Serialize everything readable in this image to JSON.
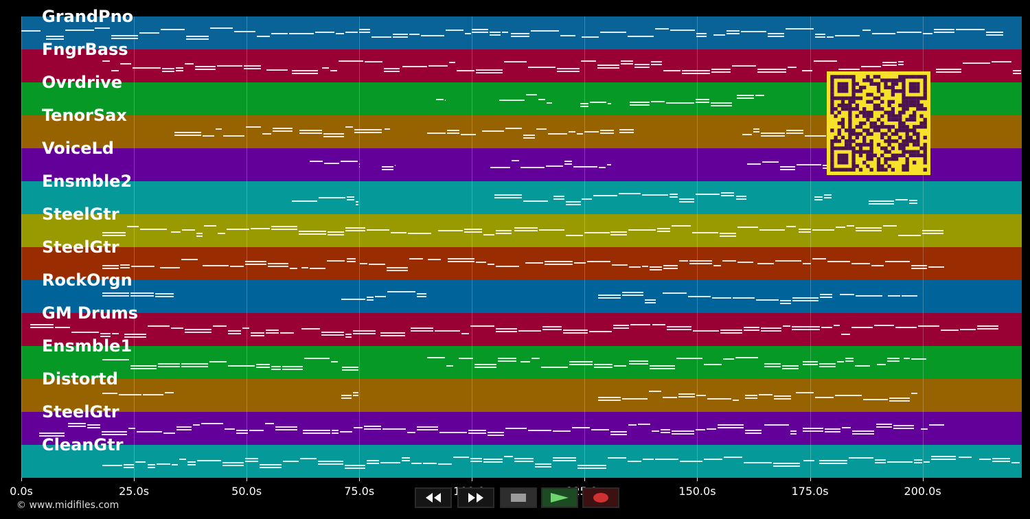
{
  "colors": {
    "background": "#000000",
    "lanes": [
      "#0a6396",
      "#990033",
      "#069926",
      "#966300",
      "#630099",
      "#069999",
      "#999900",
      "#992c00",
      "#006399",
      "#990033",
      "#069926",
      "#966300",
      "#630099",
      "#069999"
    ],
    "qr_fill": "#f7e12b",
    "qr_dark": "#4a1250"
  },
  "tracks": [
    {
      "name": "GrandPno",
      "notes": [
        [
          0,
          100
        ],
        [
          100,
          218
        ]
      ]
    },
    {
      "name": "FngrBass",
      "notes": [
        [
          18,
          196
        ],
        [
          203,
          222
        ]
      ]
    },
    {
      "name": "Ovrdrive",
      "notes": [
        [
          92,
          94
        ],
        [
          106,
          118
        ],
        [
          124,
          131
        ],
        [
          135,
          165
        ]
      ]
    },
    {
      "name": "TenorSax",
      "notes": [
        [
          34,
          82
        ],
        [
          90,
          136
        ],
        [
          160,
          198
        ]
      ]
    },
    {
      "name": "VoiceLd",
      "notes": [
        [
          64,
          75
        ],
        [
          80,
          83
        ],
        [
          104,
          131
        ],
        [
          161,
          185
        ]
      ]
    },
    {
      "name": "Ensmble2",
      "notes": [
        [
          60,
          75
        ],
        [
          105,
          161
        ],
        [
          176,
          180
        ],
        [
          188,
          199
        ]
      ]
    },
    {
      "name": "SteelGtr",
      "notes": [
        [
          18,
          205
        ]
      ]
    },
    {
      "name": "SteelGtr",
      "notes": [
        [
          18,
          205
        ]
      ]
    },
    {
      "name": "RockOrgn",
      "notes": [
        [
          18,
          34
        ],
        [
          71,
          90
        ],
        [
          128,
          199
        ]
      ]
    },
    {
      "name": "GM Drums",
      "notes": [
        [
          2,
          217
        ]
      ]
    },
    {
      "name": "Ensmble1",
      "notes": [
        [
          18,
          75
        ],
        [
          90,
          201
        ]
      ]
    },
    {
      "name": "Distortd",
      "notes": [
        [
          18,
          34
        ],
        [
          71,
          75
        ],
        [
          128,
          199
        ]
      ]
    },
    {
      "name": "SteelGtr",
      "notes": [
        [
          4,
          205
        ]
      ]
    },
    {
      "name": "CleanGtr",
      "notes": [
        [
          18,
          222
        ]
      ]
    }
  ],
  "axis": {
    "xlim": [
      0,
      222
    ],
    "ticks": [
      {
        "value": 0,
        "label": "0.0s"
      },
      {
        "value": 25,
        "label": "25.0s"
      },
      {
        "value": 50,
        "label": "50.0s"
      },
      {
        "value": 75,
        "label": "75.0s"
      },
      {
        "value": 100,
        "label": "100.0s"
      },
      {
        "value": 125,
        "label": "125.0s"
      },
      {
        "value": 150,
        "label": "150.0s"
      },
      {
        "value": 175,
        "label": "175.0s"
      },
      {
        "value": 200,
        "label": "200.0s"
      }
    ]
  },
  "copyright": "© www.midifiles.com",
  "transport": [
    {
      "name": "rewind",
      "icon": "rewind-icon"
    },
    {
      "name": "fast-forward",
      "icon": "fast-forward-icon"
    },
    {
      "name": "stop",
      "icon": "stop-icon"
    },
    {
      "name": "play",
      "icon": "play-icon"
    },
    {
      "name": "record",
      "icon": "record-icon"
    }
  ]
}
